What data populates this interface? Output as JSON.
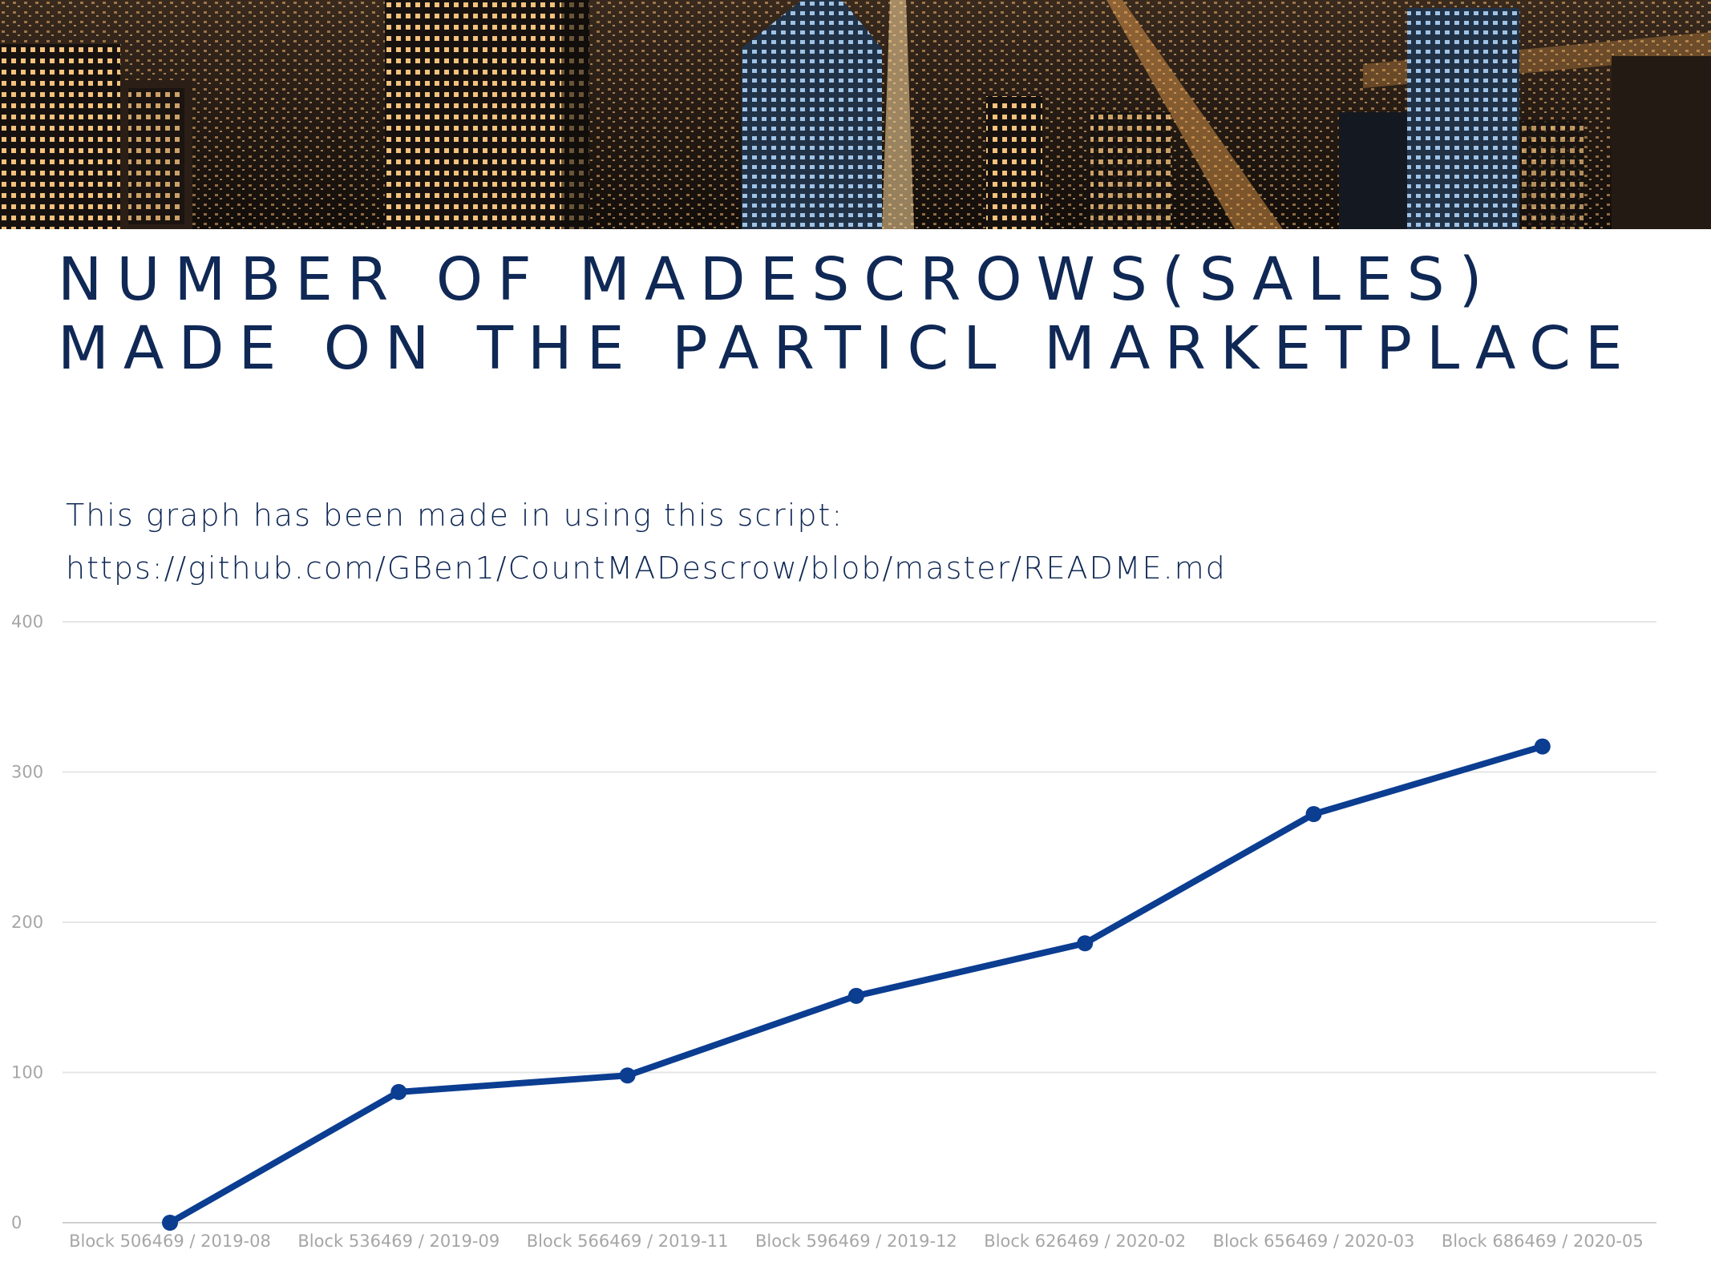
{
  "title": "NUMBER OF MADESCROWS(SALES) MADE ON THE PARTICL MARKETPLACE",
  "subtitle": {
    "line1": "This graph has been made in using this script:",
    "line2": "https://github.com/GBen1/CountMADescrow/blob/master/README.md"
  },
  "colors": {
    "title": "#0f2855",
    "series": "#0b3d91",
    "grid": "#e6e6e6",
    "tick": "#a6a6a6"
  },
  "chart_data": {
    "type": "line",
    "title": "NUMBER OF MADESCROWS(SALES) MADE ON THE PARTICL MARKETPLACE",
    "xlabel": "",
    "ylabel": "",
    "ylim": [
      0,
      400
    ],
    "yticks": [
      0,
      100,
      200,
      300,
      400
    ],
    "grid": true,
    "legend": "none",
    "categories": [
      "Block 506469 / 2019-08",
      "Block 536469 / 2019-09",
      "Block  566469 / 2019-11",
      "Block  596469 / 2019-12",
      "Block  626469 / 2020-02",
      "Block 656469 / 2020-03",
      "Block 686469 / 2020-05"
    ],
    "series": [
      {
        "values": [
          0,
          87,
          98,
          151,
          186,
          272,
          317
        ]
      }
    ]
  }
}
